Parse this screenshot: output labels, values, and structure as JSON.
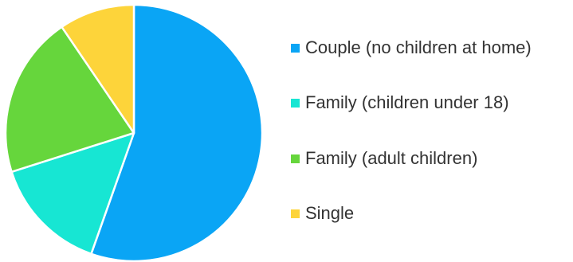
{
  "chart_data": {
    "type": "pie",
    "categories": [
      "Couple (no children at home)",
      "Family (children under 18)",
      "Family (adult children)",
      "Single"
    ],
    "values": [
      55.4,
      14.7,
      20.4,
      9.5
    ],
    "colors": [
      "#0aa5f5",
      "#17e6d3",
      "#66d63c",
      "#fdd43a"
    ],
    "start": "12 o'clock",
    "direction": "clockwise",
    "legend_position": "right"
  }
}
